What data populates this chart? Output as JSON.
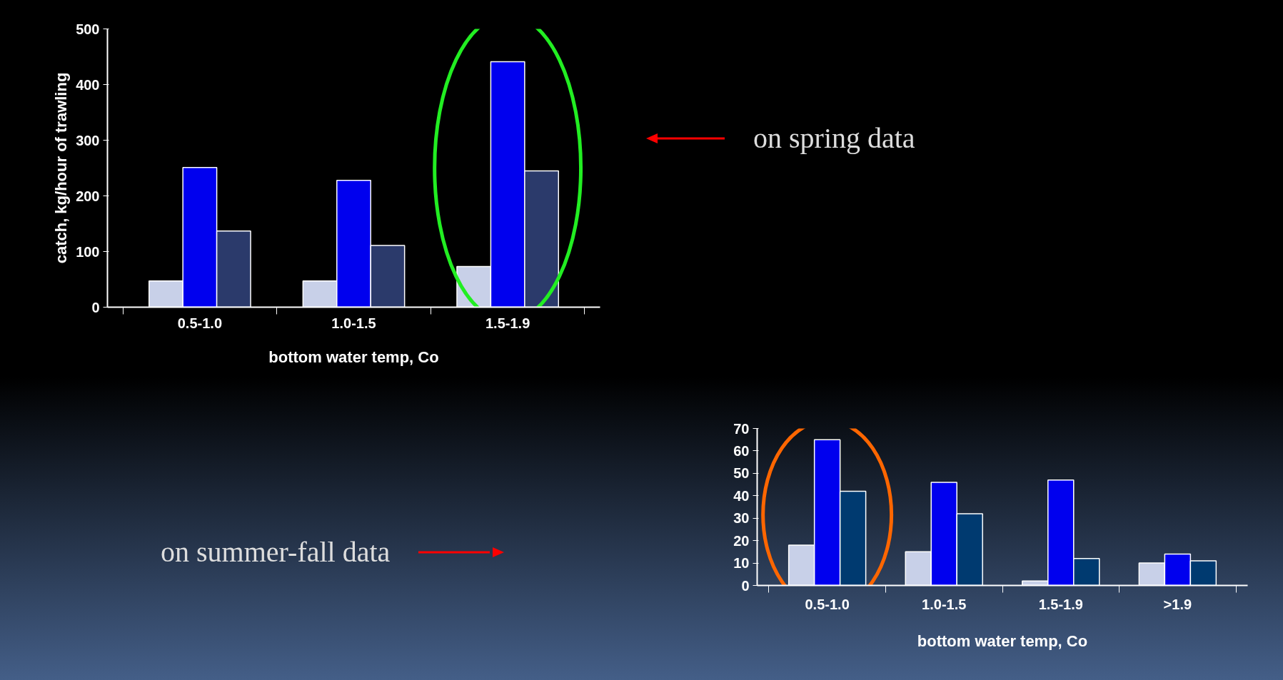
{
  "chart_data": [
    {
      "type": "bar",
      "categories": [
        "0.5-1.0",
        "1.0-1.5",
        "1.5-1.9"
      ],
      "xlabel": "bottom water temp, Co",
      "ylabel": "catch, kg/hour of trawling",
      "ylim": [
        0,
        500
      ],
      "yticks": [
        0,
        100,
        200,
        300,
        400,
        500
      ],
      "grid": false,
      "series": [
        {
          "color": "#c8d0e8",
          "values": [
            47,
            47,
            73
          ]
        },
        {
          "color": "#0000ee",
          "values": [
            251,
            228,
            441
          ]
        },
        {
          "color": "#2b3a6b",
          "values": [
            137,
            111,
            245
          ]
        }
      ],
      "annotations": [
        "on spring data"
      ]
    },
    {
      "type": "bar",
      "categories": [
        "0.5-1.0",
        "1.0-1.5",
        "1.5-1.9",
        ">1.9"
      ],
      "xlabel": "bottom water temp, Co",
      "ylim": [
        0,
        70
      ],
      "yticks": [
        0,
        10,
        20,
        30,
        40,
        50,
        60,
        70
      ],
      "grid": false,
      "series": [
        {
          "color": "#c8d0e8",
          "values": [
            18,
            15,
            2,
            10
          ]
        },
        {
          "color": "#0000ee",
          "values": [
            65,
            46,
            47,
            14
          ]
        },
        {
          "color": "#003a70",
          "values": [
            42,
            32,
            12,
            11
          ]
        }
      ],
      "annotations": [
        "on summer-fall data"
      ]
    }
  ]
}
